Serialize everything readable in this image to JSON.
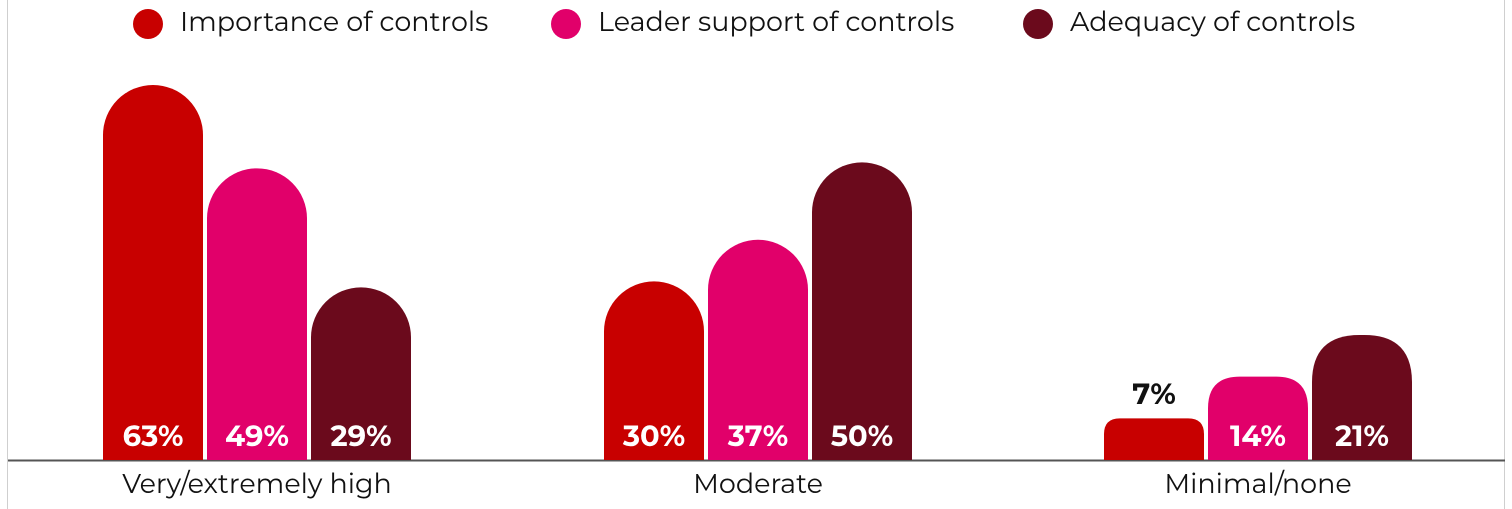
{
  "chart_data": {
    "type": "bar",
    "categories": [
      "Very/extremely high",
      "Moderate",
      "Minimal/none"
    ],
    "series": [
      {
        "name": "Importance of controls",
        "color": "#c80000",
        "values": [
          63,
          30,
          7
        ],
        "value_labels": [
          "63%",
          "30%",
          "7%"
        ]
      },
      {
        "name": "Leader support of controls",
        "color": "#e1006a",
        "values": [
          49,
          37,
          14
        ],
        "value_labels": [
          "49%",
          "37%",
          "14%"
        ]
      },
      {
        "name": "Adequacy of controls",
        "color": "#6b0a1c",
        "values": [
          29,
          50,
          21
        ],
        "value_labels": [
          "29%",
          "50%",
          "21%"
        ]
      }
    ]
  }
}
